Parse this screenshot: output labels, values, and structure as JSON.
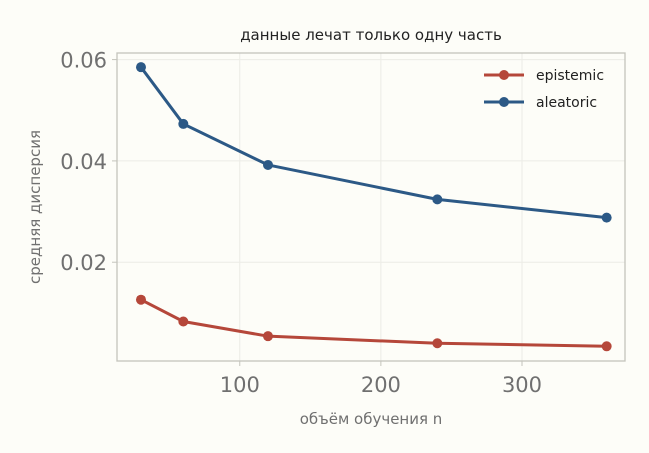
{
  "chart_data": {
    "type": "line",
    "title": "данные лечат только одну часть",
    "xlabel": "объём обучения n",
    "ylabel": "средняя дисперсия",
    "x": [
      30,
      60,
      120,
      240,
      360
    ],
    "series": [
      {
        "name": "epistemic",
        "color": "#b5473a",
        "values": [
          0.0126,
          0.0083,
          0.0054,
          0.004,
          0.0034
        ]
      },
      {
        "name": "aleatoric",
        "color": "#2c5986",
        "values": [
          0.0585,
          0.0473,
          0.0392,
          0.0324,
          0.0288
        ]
      }
    ],
    "xlim": [
      13,
      373
    ],
    "ylim": [
      0.0005,
      0.0613
    ],
    "xticks": [
      {
        "value": 100,
        "label": "100"
      },
      {
        "value": 200,
        "label": "200"
      },
      {
        "value": 300,
        "label": "300"
      }
    ],
    "yticks": [
      {
        "value": 0.02,
        "label": "0.02"
      },
      {
        "value": 0.04,
        "label": "0.04"
      },
      {
        "value": 0.06,
        "label": "0.06"
      }
    ],
    "grid": true,
    "legend_position": "top-right"
  }
}
